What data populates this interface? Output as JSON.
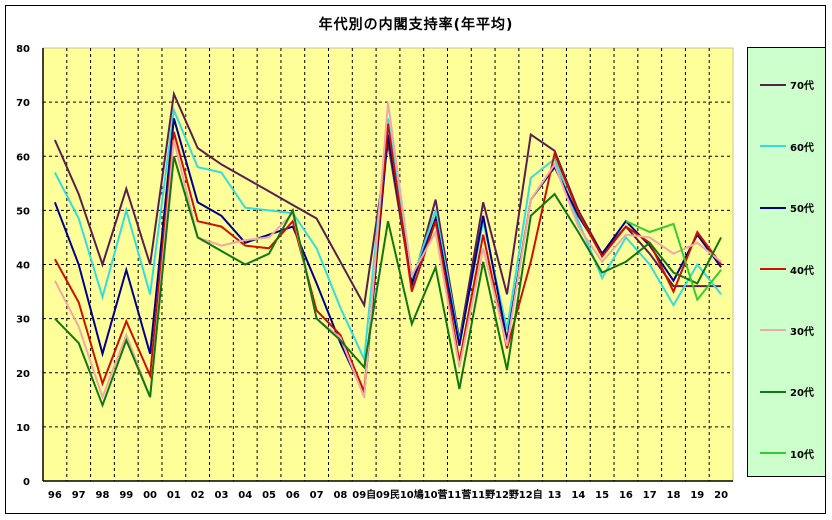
{
  "chart_data": {
    "type": "line",
    "title": "年代別の内閣支持率(年平均)",
    "xlabel": "",
    "ylabel": "",
    "ylim": [
      0,
      80
    ],
    "yticks": [
      0,
      10,
      20,
      30,
      40,
      50,
      60,
      70,
      80
    ],
    "grid": true,
    "legend_position": "right",
    "categories": [
      "96",
      "97",
      "98",
      "99",
      "00",
      "01",
      "02",
      "03",
      "04",
      "05",
      "06",
      "07",
      "08",
      "09自",
      "09民",
      "10鳩",
      "10菅",
      "11菅",
      "11野",
      "12野",
      "12自",
      "13",
      "14",
      "15",
      "16",
      "17",
      "18",
      "19",
      "20"
    ],
    "series": [
      {
        "name": "70代",
        "color": "#5a1f4f",
        "values": [
          63,
          53,
          40,
          54,
          40,
          71.5,
          61.5,
          58.5,
          56,
          53.5,
          51,
          48.5,
          40.5,
          32.5,
          62.5,
          36,
          52,
          26,
          51.5,
          34.5,
          64,
          61,
          50,
          42,
          47,
          42,
          36,
          36,
          36
        ]
      },
      {
        "name": "60代",
        "color": "#33dddd",
        "values": [
          57,
          48.5,
          34,
          50,
          34.5,
          68.5,
          58,
          57,
          50.5,
          50,
          49.5,
          43,
          32,
          22.5,
          67,
          37,
          50,
          25.5,
          48,
          28,
          56,
          59.5,
          48,
          37.5,
          45,
          40,
          32.5,
          40,
          34.5
        ]
      },
      {
        "name": "50代",
        "color": "#000088",
        "values": [
          51.5,
          40,
          23.5,
          39,
          23.5,
          67,
          51.5,
          49,
          44,
          45.5,
          47,
          36.5,
          25.5,
          16,
          64,
          36.5,
          48.5,
          25,
          49,
          26,
          52,
          58,
          49,
          42,
          48,
          43.5,
          37,
          45.5,
          39.5
        ]
      },
      {
        "name": "40代",
        "color": "#cc1100",
        "values": [
          41,
          33,
          18,
          29.5,
          19.5,
          64.5,
          48,
          47,
          43.5,
          43,
          48,
          31.5,
          27,
          16.5,
          66,
          35,
          48,
          22,
          45.5,
          24.5,
          40.5,
          60.5,
          49.5,
          41.5,
          47,
          44,
          35,
          46,
          40
        ]
      },
      {
        "name": "30代",
        "color": "#eeaaaa",
        "values": [
          37,
          28.5,
          15.5,
          27,
          15.5,
          63,
          45,
          43.5,
          44.5,
          45,
          49.5,
          30,
          26.5,
          15.5,
          70,
          38,
          46,
          21,
          43,
          25,
          52,
          58.5,
          47,
          40.5,
          45.5,
          45,
          42,
          44,
          40.5
        ]
      },
      {
        "name": "20代",
        "color": "#117711",
        "values": [
          30,
          25.5,
          14,
          26,
          15.5,
          60,
          45,
          42.5,
          40,
          42,
          50,
          30,
          26,
          21,
          48,
          29,
          39.5,
          17,
          40.5,
          20.5,
          49,
          53,
          46,
          38.5,
          40.5,
          44,
          38.5,
          36.5,
          45
        ]
      },
      {
        "name": "10代",
        "color": "#33cc33",
        "values": [
          null,
          null,
          null,
          null,
          null,
          null,
          null,
          null,
          null,
          null,
          null,
          null,
          null,
          null,
          null,
          null,
          null,
          null,
          null,
          null,
          null,
          null,
          null,
          null,
          48,
          46,
          47.5,
          33.5,
          39
        ]
      }
    ]
  },
  "legend": {
    "items": [
      {
        "label": "70代",
        "color": "#5a1f4f"
      },
      {
        "label": "60代",
        "color": "#33dddd"
      },
      {
        "label": "50代",
        "color": "#000088"
      },
      {
        "label": "40代",
        "color": "#cc1100"
      },
      {
        "label": "30代",
        "color": "#eeaaaa"
      },
      {
        "label": "20代",
        "color": "#117711"
      },
      {
        "label": "10代",
        "color": "#33cc33"
      }
    ]
  },
  "colors": {
    "plot_background": "#ffff99",
    "legend_background": "#ccffcc",
    "gridline": "#000000"
  }
}
